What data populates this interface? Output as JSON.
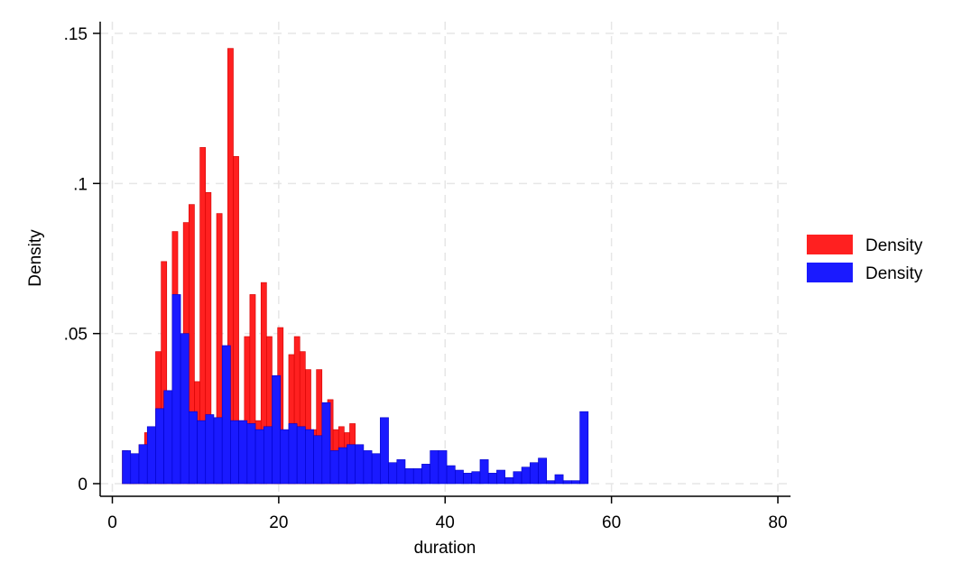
{
  "chart_data": {
    "type": "bar",
    "xlabel": "duration",
    "ylabel": "Density",
    "xlim": [
      0,
      80
    ],
    "ylim": [
      0,
      0.15
    ],
    "x_ticks": [
      {
        "value": 0,
        "label": "0"
      },
      {
        "value": 20,
        "label": "20"
      },
      {
        "value": 40,
        "label": "40"
      },
      {
        "value": 60,
        "label": "60"
      },
      {
        "value": 80,
        "label": "80"
      }
    ],
    "y_ticks": [
      {
        "value": 0,
        "label": "0"
      },
      {
        "value": 0.05,
        "label": ".05"
      },
      {
        "value": 0.1,
        "label": ".1"
      },
      {
        "value": 0.15,
        "label": ".15"
      }
    ],
    "grid": true,
    "legend_position": "right",
    "series": [
      {
        "name": "Density",
        "color": "#ff2020",
        "bin_width": 0.667,
        "x_start": [
          1.2,
          1.87,
          2.53,
          3.2,
          3.87,
          4.53,
          5.2,
          5.87,
          6.53,
          7.2,
          7.87,
          8.53,
          9.2,
          9.87,
          10.53,
          11.2,
          11.87,
          12.53,
          13.2,
          13.87,
          14.53,
          15.2,
          15.87,
          16.53,
          17.2,
          17.87,
          18.53,
          19.2,
          19.87,
          20.53,
          21.2,
          21.87,
          22.53,
          23.2,
          23.87,
          24.53,
          25.2,
          25.87,
          26.53,
          27.2,
          27.87,
          28.53
        ],
        "values": [
          0.011,
          0.006,
          0.004,
          0.013,
          0.017,
          0.015,
          0.044,
          0.074,
          0.031,
          0.084,
          0.031,
          0.087,
          0.093,
          0.034,
          0.112,
          0.097,
          0.021,
          0.09,
          0.023,
          0.145,
          0.109,
          0.021,
          0.049,
          0.063,
          0.021,
          0.067,
          0.049,
          0.019,
          0.052,
          0.017,
          0.043,
          0.049,
          0.044,
          0.038,
          0.018,
          0.038,
          0.02,
          0.028,
          0.018,
          0.019,
          0.017,
          0.02
        ]
      },
      {
        "name": "Density",
        "color": "#1a1aff",
        "bin_width": 1.0,
        "x_start": [
          1.2,
          2.2,
          3.2,
          4.2,
          5.2,
          6.2,
          7.2,
          8.2,
          9.2,
          10.2,
          11.2,
          12.2,
          13.2,
          14.2,
          15.2,
          16.2,
          17.2,
          18.2,
          19.2,
          20.2,
          21.2,
          22.2,
          23.2,
          24.2,
          25.2,
          26.2,
          27.2,
          28.2,
          29.2,
          30.2,
          31.2,
          32.2,
          33.2,
          34.2,
          35.2,
          36.2,
          37.2,
          38.2,
          39.2,
          40.2,
          41.2,
          42.2,
          43.2,
          44.2,
          45.2,
          46.2,
          47.2,
          48.2,
          49.2,
          50.2,
          51.2,
          52.2,
          53.2,
          54.2,
          55.2,
          56.2,
          57.2,
          58.2,
          59.2,
          60.2,
          61.2,
          62.2,
          63.2,
          64.2,
          65.2
        ],
        "values": [
          0.011,
          0.01,
          0.013,
          0.019,
          0.025,
          0.031,
          0.063,
          0.05,
          0.024,
          0.021,
          0.023,
          0.022,
          0.046,
          0.021,
          0.021,
          0.02,
          0.018,
          0.019,
          0.036,
          0.018,
          0.02,
          0.019,
          0.018,
          0.016,
          0.027,
          0.011,
          0.012,
          0.013,
          0.013,
          0.011,
          0.01,
          0.022,
          0.007,
          0.008,
          0.005,
          0.005,
          0.0065,
          0.011,
          0.011,
          0.006,
          0.0045,
          0.0035,
          0.004,
          0.008,
          0.0035,
          0.0045,
          0.002,
          0.004,
          0.0055,
          0.007,
          0.0085,
          0.001,
          0.003,
          0.001,
          0.001,
          0.024,
          0.0,
          0.0,
          0.0,
          0.0,
          0.0,
          0.0,
          0.0,
          0.0,
          0.0
        ]
      }
    ]
  }
}
